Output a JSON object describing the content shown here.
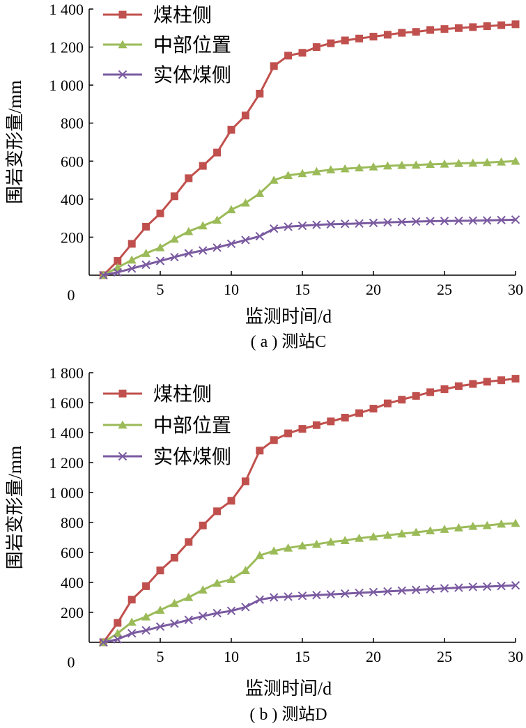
{
  "colors": {
    "coal_pillar": "#c0504d",
    "middle": "#9bbb59",
    "solid_coal": "#7a5aa0",
    "axis": "#000000"
  },
  "chart_data": [
    {
      "type": "line",
      "caption": "( a ) 测站C",
      "xlabel": "监测时间/d",
      "ylabel": "围岩变形量/mm",
      "xlim": [
        0,
        30
      ],
      "ylim": [
        0,
        1400
      ],
      "x_ticks": [
        0,
        5,
        10,
        15,
        20,
        25,
        30
      ],
      "y_ticks": [
        200,
        400,
        600,
        800,
        1000,
        1200,
        1400
      ],
      "y_tick_labels": [
        "200",
        "400",
        "600",
        "800",
        "1 000",
        "1 200",
        "1 400"
      ],
      "x_tick_labels": [
        "0",
        "5",
        "10",
        "15",
        "20",
        "25",
        "30"
      ],
      "legend_position": "top-left",
      "x": [
        1,
        2,
        3,
        4,
        5,
        6,
        7,
        8,
        9,
        10,
        11,
        12,
        13,
        14,
        15,
        16,
        17,
        18,
        19,
        20,
        21,
        22,
        23,
        24,
        25,
        26,
        27,
        28,
        29,
        30
      ],
      "series": [
        {
          "name": "煤柱侧",
          "marker": "square",
          "color_key": "coal_pillar",
          "values": [
            0,
            75,
            165,
            255,
            325,
            415,
            510,
            575,
            645,
            765,
            840,
            955,
            1100,
            1155,
            1170,
            1200,
            1220,
            1235,
            1245,
            1255,
            1265,
            1275,
            1280,
            1290,
            1295,
            1300,
            1305,
            1310,
            1315,
            1320
          ]
        },
        {
          "name": "中部位置",
          "marker": "triangle",
          "color_key": "middle",
          "values": [
            0,
            40,
            80,
            115,
            145,
            190,
            230,
            260,
            290,
            345,
            380,
            430,
            500,
            525,
            535,
            545,
            555,
            560,
            565,
            570,
            575,
            578,
            580,
            583,
            585,
            588,
            590,
            593,
            596,
            600
          ]
        },
        {
          "name": "实体煤侧",
          "marker": "x",
          "color_key": "solid_coal",
          "values": [
            0,
            15,
            35,
            55,
            75,
            95,
            115,
            130,
            145,
            165,
            185,
            205,
            245,
            255,
            260,
            265,
            268,
            270,
            272,
            275,
            278,
            280,
            282,
            284,
            285,
            286,
            287,
            288,
            290,
            292
          ]
        }
      ]
    },
    {
      "type": "line",
      "caption": "( b ) 测站D",
      "xlabel": "监测时间/d",
      "ylabel": "围岩变形量/mm",
      "xlim": [
        0,
        30
      ],
      "ylim": [
        0,
        1800
      ],
      "x_ticks": [
        0,
        5,
        10,
        15,
        20,
        25,
        30
      ],
      "y_ticks": [
        200,
        400,
        600,
        800,
        1000,
        1200,
        1400,
        1600,
        1800
      ],
      "y_tick_labels": [
        "200",
        "400",
        "600",
        "800",
        "1 000",
        "1 200",
        "1 400",
        "1 600",
        "1 800"
      ],
      "x_tick_labels": [
        "0",
        "5",
        "10",
        "15",
        "20",
        "25",
        "30"
      ],
      "legend_position": "top-left",
      "x": [
        1,
        2,
        3,
        4,
        5,
        6,
        7,
        8,
        9,
        10,
        11,
        12,
        13,
        14,
        15,
        16,
        17,
        18,
        19,
        20,
        21,
        22,
        23,
        24,
        25,
        26,
        27,
        28,
        29,
        30
      ],
      "series": [
        {
          "name": "煤柱侧",
          "marker": "square",
          "color_key": "coal_pillar",
          "values": [
            0,
            130,
            285,
            375,
            480,
            565,
            670,
            780,
            875,
            945,
            1075,
            1280,
            1350,
            1395,
            1425,
            1450,
            1475,
            1500,
            1530,
            1560,
            1595,
            1620,
            1645,
            1670,
            1690,
            1710,
            1725,
            1740,
            1750,
            1760
          ]
        },
        {
          "name": "中部位置",
          "marker": "triangle",
          "color_key": "middle",
          "values": [
            0,
            60,
            135,
            170,
            215,
            260,
            300,
            350,
            395,
            420,
            480,
            580,
            610,
            630,
            645,
            655,
            670,
            680,
            695,
            705,
            715,
            725,
            735,
            745,
            755,
            765,
            775,
            780,
            790,
            795
          ]
        },
        {
          "name": "实体煤侧",
          "marker": "x",
          "color_key": "solid_coal",
          "values": [
            0,
            20,
            60,
            80,
            105,
            125,
            150,
            175,
            195,
            210,
            235,
            285,
            300,
            305,
            310,
            315,
            320,
            325,
            330,
            335,
            340,
            345,
            350,
            355,
            360,
            365,
            370,
            372,
            376,
            380
          ]
        }
      ]
    }
  ]
}
